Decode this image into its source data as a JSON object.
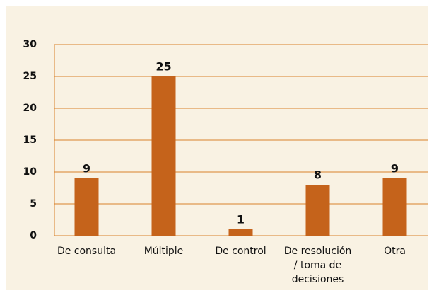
{
  "chart_data": {
    "type": "bar",
    "categories": [
      "De consulta",
      "Múltiple",
      "De control",
      "De resolución / toma de decisiones",
      "Otra"
    ],
    "values": [
      9,
      25,
      1,
      8,
      9
    ],
    "color": "#c5631b",
    "ylim": [
      0,
      30
    ],
    "yticks": [
      0,
      5,
      10,
      15,
      20,
      25,
      30
    ],
    "grid": true
  }
}
